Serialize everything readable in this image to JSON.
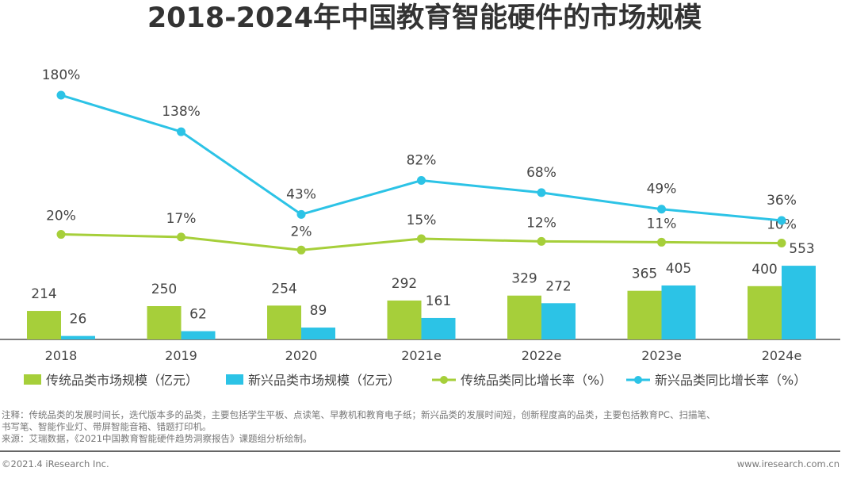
{
  "title": "2018-2024年中国教育智能硬件的市场规模",
  "chart_data": {
    "type": "bar+line",
    "title": "2018-2024年中国教育智能硬件的市场规模",
    "categories": [
      "2018",
      "2019",
      "2020",
      "2021e",
      "2022e",
      "2023e",
      "2024e"
    ],
    "series": [
      {
        "name": "传统品类市场规模（亿元）",
        "type": "bar",
        "color": "#a6cf3a",
        "values": [
          214,
          250,
          254,
          292,
          329,
          365,
          400
        ]
      },
      {
        "name": "新兴品类市场规模（亿元）",
        "type": "bar",
        "color": "#2cc3e6",
        "values": [
          26,
          62,
          89,
          161,
          272,
          405,
          553
        ]
      },
      {
        "name": "传统品类同比增长率（%）",
        "type": "line",
        "color": "#a6cf3a",
        "values": [
          20,
          17,
          2,
          15,
          12,
          11,
          10
        ],
        "labels": [
          "20%",
          "17%",
          "2%",
          "15%",
          "12%",
          "11%",
          "10%"
        ]
      },
      {
        "name": "新兴品类同比增长率（%）",
        "type": "line",
        "color": "#2cc3e6",
        "values": [
          180,
          138,
          43,
          82,
          68,
          49,
          36
        ],
        "labels": [
          "180%",
          "138%",
          "43%",
          "82%",
          "68%",
          "49%",
          "36%"
        ]
      }
    ],
    "legend_position": "bottom",
    "grid": false
  },
  "notes": [
    "注释：传统品类的发展时间长，迭代版本多的品类，主要包括学生平板、点读笔、早教机和教育电子纸；新兴品类的发展时间短，创新程度高的品类，主要包括教育PC、扫描笔、",
    "书写笔、智能作业灯、带屏智能音箱、错题打印机。",
    "来源：艾瑞数据，《2021中国教育智能硬件趋势洞察报告》课题组分析绘制。"
  ],
  "footer": {
    "left": "©2021.4 iResearch Inc.",
    "right": "www.iresearch.com.cn"
  }
}
